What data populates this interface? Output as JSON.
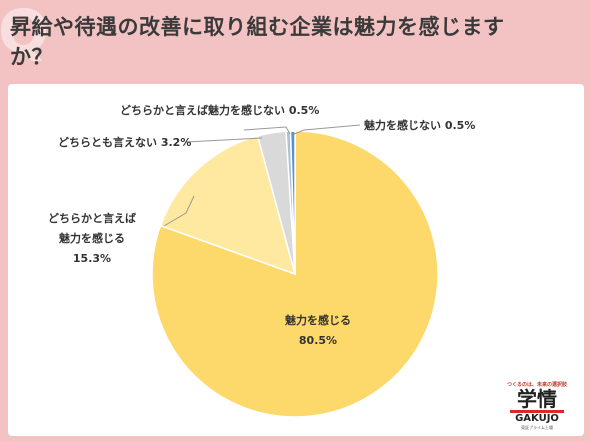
{
  "title": "昇給や待遇の改善に取り組む企業は魅力を感じますか？",
  "chart_data": {
    "type": "pie",
    "title": "昇給や待遇の改善に取り組む企業は魅力を感じますか？",
    "slices": [
      {
        "label": "魅力を感じる",
        "value": 80.5,
        "display": "80.5%",
        "color": "#fdd86a"
      },
      {
        "label": "どちらかと言えば魅力を感じる",
        "value": 15.3,
        "display": "15.3%",
        "color": "#ffe8a0"
      },
      {
        "label": "どちらとも言えない",
        "value": 3.2,
        "display": "3.2%",
        "color": "#d9d9d9"
      },
      {
        "label": "どちらかと言えば魅力を感じない",
        "value": 0.5,
        "display": "0.5%",
        "color": "#a9c2d8"
      },
      {
        "label": "魅力を感じない",
        "value": 0.5,
        "display": "0.5%",
        "color": "#5b8fcf"
      }
    ],
    "labels": {
      "main_name": "魅力を感じる",
      "main_value": "80.5%",
      "s2_line1": "どちらかと言えば",
      "s2_line2": "魅力を感じる",
      "s2_value": "15.3%",
      "s3": "どちらとも言えない 3.2%",
      "s4": "どちらかと言えば魅力を感じない 0.5%",
      "s5": "魅力を感じない 0.5%"
    }
  },
  "logo": {
    "tagline": "つくるのは、未来の選択肢",
    "main": "学情",
    "en": "GAKUJO",
    "sub": "東証プライム上場"
  }
}
